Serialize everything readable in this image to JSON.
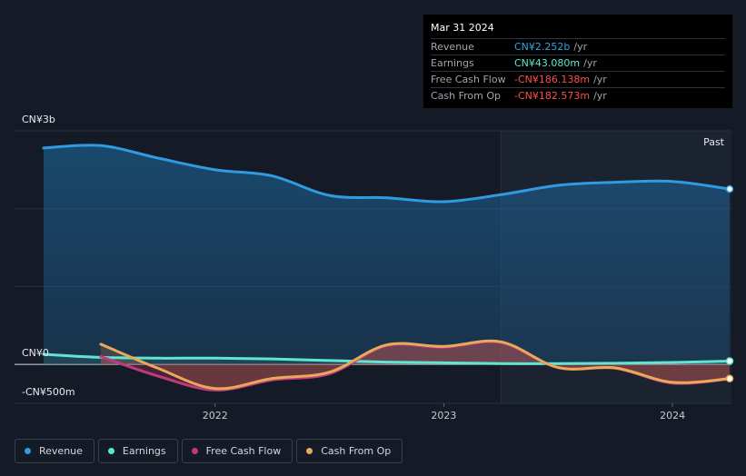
{
  "tooltip": {
    "date": "Mar 31 2024",
    "rows": [
      {
        "label": "Revenue",
        "value": "CN¥2.252b",
        "unit": "/yr",
        "color": "#2fa4e7"
      },
      {
        "label": "Earnings",
        "value": "CN¥43.080m",
        "unit": "/yr",
        "color": "#5ee6d0"
      },
      {
        "label": "Free Cash Flow",
        "value": "-CN¥186.138m",
        "unit": "/yr",
        "color": "#ff4d4d"
      },
      {
        "label": "Cash From Op",
        "value": "-CN¥182.573m",
        "unit": "/yr",
        "color": "#ff4d4d"
      }
    ]
  },
  "past_label": "Past",
  "legend": [
    {
      "label": "Revenue",
      "color": "#2f9be0"
    },
    {
      "label": "Earnings",
      "color": "#5ee6d0"
    },
    {
      "label": "Free Cash Flow",
      "color": "#c0397a"
    },
    {
      "label": "Cash From Op",
      "color": "#e8a95b"
    }
  ],
  "chart_data": {
    "type": "line",
    "y_unit": "CN¥ millions",
    "ylim": [
      -500,
      3000
    ],
    "y_tick_labels": [
      {
        "value": 3000,
        "label": "CN¥3b"
      },
      {
        "value": 0,
        "label": "CN¥0"
      },
      {
        "value": -500,
        "label": "-CN¥500m"
      }
    ],
    "x_tick_labels": [
      {
        "value": 2022.0,
        "label": "2022"
      },
      {
        "value": 2023.0,
        "label": "2023"
      },
      {
        "value": 2024.0,
        "label": "2024"
      }
    ],
    "xlim": [
      2021.25,
      2024.25
    ],
    "past_boundary": 2023.25,
    "series": [
      {
        "name": "Revenue",
        "color": "#2f9be0",
        "points": [
          [
            2021.25,
            2780
          ],
          [
            2021.5,
            2810
          ],
          [
            2021.75,
            2650
          ],
          [
            2022.0,
            2500
          ],
          [
            2022.25,
            2420
          ],
          [
            2022.5,
            2170
          ],
          [
            2022.75,
            2140
          ],
          [
            2023.0,
            2090
          ],
          [
            2023.25,
            2180
          ],
          [
            2023.5,
            2300
          ],
          [
            2023.75,
            2340
          ],
          [
            2024.0,
            2350
          ],
          [
            2024.25,
            2252
          ]
        ]
      },
      {
        "name": "Earnings",
        "color": "#5ee6d0",
        "points": [
          [
            2021.25,
            130
          ],
          [
            2021.5,
            90
          ],
          [
            2021.75,
            80
          ],
          [
            2022.0,
            80
          ],
          [
            2022.25,
            70
          ],
          [
            2022.5,
            50
          ],
          [
            2022.75,
            30
          ],
          [
            2023.0,
            20
          ],
          [
            2023.25,
            10
          ],
          [
            2023.5,
            10
          ],
          [
            2023.75,
            15
          ],
          [
            2024.0,
            25
          ],
          [
            2024.25,
            43.08
          ]
        ]
      },
      {
        "name": "Free Cash Flow",
        "color": "#c0397a",
        "points": [
          [
            2021.5,
            100
          ],
          [
            2021.75,
            -150
          ],
          [
            2022.0,
            -330
          ],
          [
            2022.25,
            -200
          ],
          [
            2022.5,
            -120
          ],
          [
            2022.75,
            240
          ],
          [
            2023.0,
            220
          ],
          [
            2023.25,
            280
          ],
          [
            2023.5,
            -40
          ],
          [
            2023.75,
            -50
          ],
          [
            2024.0,
            -240
          ],
          [
            2024.25,
            -186.138
          ]
        ]
      },
      {
        "name": "Cash From Op",
        "color": "#e8a95b",
        "points": [
          [
            2021.5,
            260
          ],
          [
            2021.75,
            -50
          ],
          [
            2022.0,
            -310
          ],
          [
            2022.25,
            -180
          ],
          [
            2022.5,
            -100
          ],
          [
            2022.75,
            250
          ],
          [
            2023.0,
            230
          ],
          [
            2023.25,
            290
          ],
          [
            2023.5,
            -40
          ],
          [
            2023.75,
            -45
          ],
          [
            2024.0,
            -230
          ],
          [
            2024.25,
            -182.573
          ]
        ]
      }
    ]
  }
}
